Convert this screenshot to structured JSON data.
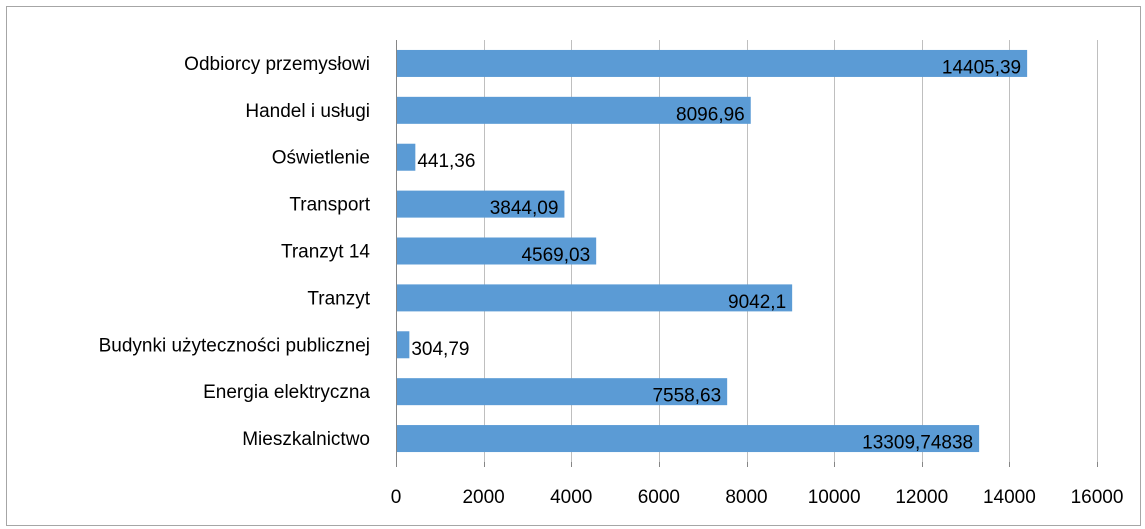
{
  "colors": {
    "bar": "#5b9bd5",
    "grid": "#bfbfbf",
    "axis": "#868686",
    "text": "#000000"
  },
  "chart_data": {
    "type": "bar",
    "orientation": "horizontal",
    "title": "",
    "xlabel": "",
    "ylabel": "",
    "xlim": [
      0,
      16000
    ],
    "ticks": [
      0,
      2000,
      4000,
      6000,
      8000,
      10000,
      12000,
      14000,
      16000
    ],
    "tick_labels": [
      "0",
      "2000",
      "4000",
      "6000",
      "8000",
      "10000",
      "12000",
      "14000",
      "16000"
    ],
    "grid": true,
    "legend": "none",
    "categories": [
      "Odbiorcy przemysłowi",
      "Handel i usługi",
      "Oświetlenie",
      "Transport",
      "Tranzyt 14",
      "Tranzyt",
      "Budynki użyteczności publicznej",
      "Energia elektryczna",
      "Mieszkalnictwo"
    ],
    "values": [
      14405.39,
      8096.96,
      441.36,
      3844.09,
      4569.03,
      9042.1,
      304.79,
      7558.63,
      13309.74838
    ],
    "data_labels": [
      "14405,39",
      "8096,96",
      "441,36",
      "3844,09",
      "4569,03",
      "9042,1",
      "304,79",
      "7558,63",
      "13309,74838"
    ]
  }
}
